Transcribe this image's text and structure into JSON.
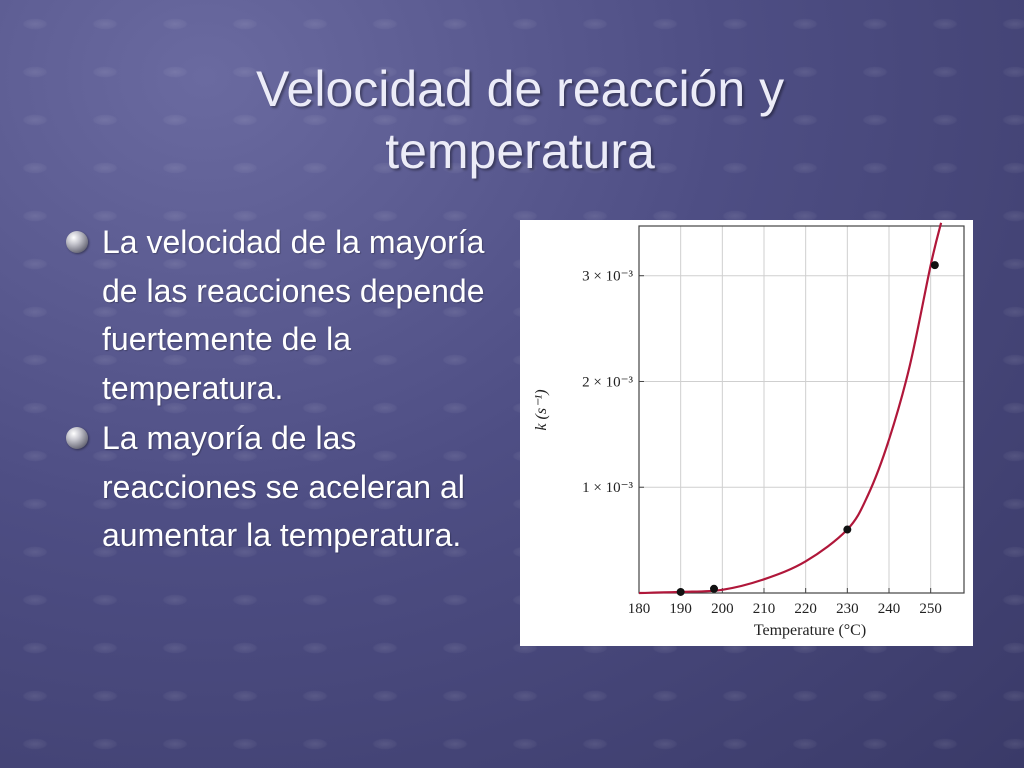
{
  "slide": {
    "title_line1": "Velocidad de reacción y",
    "title_line2": "temperatura",
    "bullets": [
      "La velocidad de la mayoría de las reacciones depende fuertemente de la temperatura.",
      "La mayoría de las reacciones se aceleran al aumentar la temperatura."
    ],
    "colors": {
      "background": "#4e4e84",
      "text": "#ffffff",
      "curve": "#b0173a"
    },
    "bullet_icon": "sphere-bullet-icon"
  },
  "chart_data": {
    "type": "line",
    "xlabel": "Temperature (°C)",
    "ylabel": "k (s⁻¹)",
    "x_ticks": [
      180,
      190,
      200,
      210,
      220,
      230,
      240,
      250
    ],
    "y_ticks": [
      {
        "value": 0.001,
        "label": "1 × 10⁻³"
      },
      {
        "value": 0.002,
        "label": "2 × 10⁻³"
      },
      {
        "value": 0.003,
        "label": "3 × 10⁻³"
      }
    ],
    "xlim": [
      180,
      258
    ],
    "ylim": [
      0,
      0.00347
    ],
    "grid": true,
    "series": [
      {
        "curve": [
          {
            "x": 180,
            "y": 0.0
          },
          {
            "x": 190,
            "y": 1e-05
          },
          {
            "x": 200,
            "y": 3e-05
          },
          {
            "x": 210,
            "y": 0.00013
          },
          {
            "x": 220,
            "y": 0.0003
          },
          {
            "x": 230,
            "y": 0.0006
          },
          {
            "x": 235,
            "y": 0.00093
          },
          {
            "x": 240,
            "y": 0.00145
          },
          {
            "x": 245,
            "y": 0.00215
          },
          {
            "x": 250,
            "y": 0.0031
          },
          {
            "x": 252.5,
            "y": 0.0035
          }
        ],
        "points": [
          {
            "x": 190,
            "y": 1e-05
          },
          {
            "x": 198,
            "y": 4e-05
          },
          {
            "x": 230,
            "y": 0.0006
          },
          {
            "x": 251,
            "y": 0.0031
          }
        ]
      }
    ]
  }
}
